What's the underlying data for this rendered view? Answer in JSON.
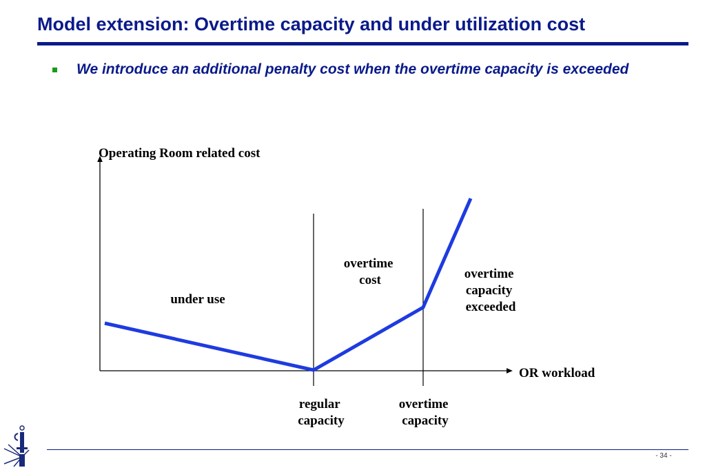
{
  "slide": {
    "title": "Model extension: Overtime capacity and under utilization cost",
    "bullet": "We introduce an additional penalty cost when the overtime capacity is exceeded",
    "page_number": "- 34 -"
  },
  "diagram": {
    "y_axis_label": "Operating Room related cost",
    "x_axis_label": "OR workload",
    "region_labels": {
      "under_use": "under use",
      "overtime_cost": [
        "overtime",
        "cost"
      ],
      "overtime_exceeded": [
        "overtime",
        "capacity",
        "exceeded"
      ]
    },
    "tick_labels": {
      "regular_capacity": [
        "regular",
        "capacity"
      ],
      "overtime_capacity": [
        "overtime",
        "capacity"
      ]
    },
    "line_color": "#1e3be0",
    "axis_color": "#000000"
  },
  "colors": {
    "title": "#0a1a8a",
    "bullet_marker": "#1a9a1a"
  }
}
